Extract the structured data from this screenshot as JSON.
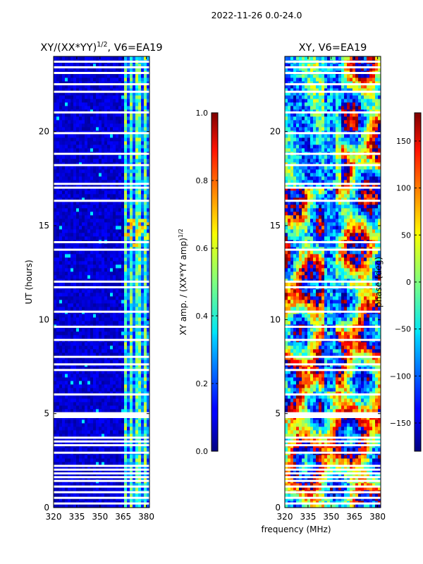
{
  "suptitle": "2022-11-26 0.0-24.0",
  "chart_data": [
    {
      "type": "heatmap",
      "title_main": "XY/(XX*YY)",
      "title_exp": "1/2",
      "title_tail": ", V6=EA19",
      "xlabel": "",
      "ylabel": "UT (hours)",
      "x_range": [
        320,
        382
      ],
      "y_range": [
        0,
        24
      ],
      "x_ticks": [
        320,
        335,
        350,
        365,
        380
      ],
      "y_ticks": [
        0,
        5,
        10,
        15,
        20
      ],
      "colorbar": {
        "label_main": "XY amp. / (XX*YY amp)",
        "label_exp": "1/2",
        "range": [
          0.0,
          1.0
        ],
        "ticks": [
          0.0,
          0.2,
          0.4,
          0.6,
          0.8,
          1.0
        ],
        "tick_labels": [
          "0.0",
          "0.2",
          "0.4",
          "0.6",
          "0.8",
          "1.0"
        ]
      },
      "white_gap_hours": [
        0.2,
        0.5,
        0.8,
        1.1,
        1.4,
        1.6,
        1.8,
        2.0,
        2.2,
        2.9,
        3.3,
        3.5,
        3.7,
        4.8,
        4.9,
        5.0,
        6.0,
        7.3,
        7.6,
        8.0,
        8.9,
        9.6,
        10.4,
        11.7,
        12.0,
        13.7,
        14.1,
        16.3,
        17.0,
        17.2,
        18.2,
        18.8,
        19.9,
        21.0,
        22.1,
        22.5,
        23.1,
        23.4,
        23.7
      ],
      "bright_band_mhz": [
        364,
        381
      ]
    },
    {
      "type": "heatmap",
      "title": "XY, V6=EA19",
      "xlabel": "frequency (MHz)",
      "ylabel": "",
      "x_range": [
        320,
        382
      ],
      "y_range": [
        0,
        24
      ],
      "x_ticks": [
        320,
        335,
        350,
        365,
        380
      ],
      "y_ticks": [
        0,
        5,
        10,
        15,
        20
      ],
      "colorbar": {
        "label": "phase (deg)",
        "range": [
          -180,
          180
        ],
        "ticks": [
          -150,
          -100,
          -50,
          0,
          50,
          100,
          150
        ],
        "tick_labels": [
          "−150",
          "−100",
          "−50",
          "0",
          "50",
          "100",
          "150"
        ]
      },
      "white_gap_hours": [
        0.2,
        0.5,
        0.8,
        1.1,
        1.4,
        1.6,
        1.8,
        2.0,
        2.2,
        2.9,
        3.3,
        3.5,
        3.7,
        4.8,
        4.9,
        5.0,
        6.0,
        7.3,
        7.6,
        8.0,
        8.9,
        9.6,
        10.4,
        11.7,
        12.0,
        13.7,
        14.1,
        16.3,
        17.0,
        17.2,
        18.2,
        18.8,
        19.9,
        21.0,
        22.1,
        22.5,
        23.1,
        23.4,
        23.7
      ]
    }
  ]
}
